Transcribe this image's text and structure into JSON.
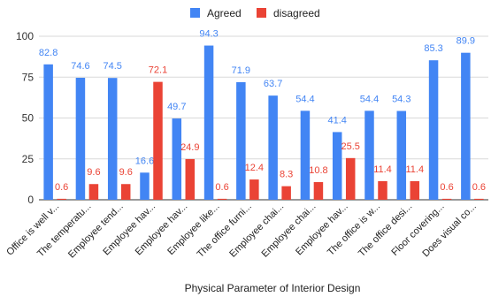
{
  "chart_data": {
    "type": "bar",
    "xlabel": "Physical Parameter of Interior Design",
    "ylabel": "",
    "ylim": [
      0,
      100
    ],
    "yticks": [
      0,
      25,
      50,
      75,
      100
    ],
    "grid": true,
    "legend_position": "top-center",
    "categories": [
      "Office is well v...",
      "The temperatu...",
      "Employee tend...",
      "Employee hav...",
      "Employee hav...",
      "Employee like...",
      "The office furni...",
      "Employee chai...",
      "Employee chai...",
      "Employee hav...",
      "The office is w...",
      "The office desi...",
      "Floor covering...",
      "Does visual co..."
    ],
    "series": [
      {
        "name": "Agreed",
        "color": "#4285f4",
        "values": [
          82.8,
          74.6,
          74.5,
          16.6,
          49.7,
          94.3,
          71.9,
          63.7,
          54.4,
          41.4,
          54.4,
          54.3,
          85.3,
          89.9
        ],
        "labels": [
          "82.8",
          "74.6",
          "74.5",
          "16.6",
          "49.7",
          "94.3",
          "71.9",
          "63.7",
          "54.4",
          "41.4",
          "54.4",
          "54.3",
          "85.3",
          "89.9"
        ]
      },
      {
        "name": "disagreed",
        "color": "#ea4335",
        "values": [
          0.6,
          9.6,
          9.6,
          72.1,
          24.9,
          0.6,
          12.4,
          8.3,
          10.8,
          25.5,
          11.4,
          11.4,
          0.6,
          0.6
        ],
        "labels": [
          "0.6",
          "9.6",
          "9.6",
          "72.1",
          "24.9",
          "0.6",
          "12.4",
          "8.3",
          "10.8",
          "25.5",
          "11.4",
          "11.4",
          "0.6",
          "0.6"
        ]
      }
    ]
  }
}
